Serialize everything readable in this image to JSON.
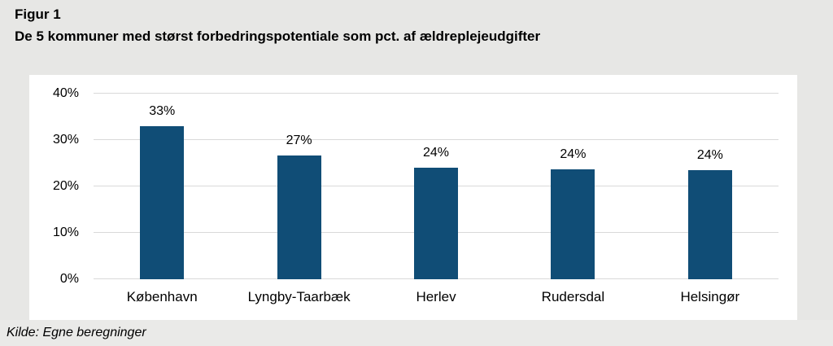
{
  "figure": {
    "label": "Figur 1",
    "title": "De 5 kommuner med størst forbedringspotentiale som pct. af ældreplejeudgifter",
    "source": "Kilde: Egne beregninger"
  },
  "chart_data": {
    "type": "bar",
    "title": "De 5 kommuner med størst forbedringspotentiale som pct. af ældreplejeudgifter",
    "categories": [
      "København",
      "Lyngby-Taarbæk",
      "Herlev",
      "Rudersdal",
      "Helsingør"
    ],
    "values": [
      33,
      27,
      24,
      24,
      24
    ],
    "value_labels": [
      "33%",
      "27%",
      "24%",
      "24%",
      "24%"
    ],
    "render_values": [
      33.0,
      26.6,
      24.1,
      23.7,
      23.5
    ],
    "xlabel": "",
    "ylabel": "",
    "ylim": [
      0,
      40
    ],
    "yticks": [
      "0%",
      "10%",
      "20%",
      "30%",
      "40%"
    ],
    "grid": true,
    "legend": false,
    "bar_color": "#104D76"
  },
  "colors": {
    "page_background": "#E7E7E5",
    "panel_background": "#FFFFFF",
    "footer_background": "#EAEAE8",
    "gridline": "#D9D9D9",
    "bar": "#104D76",
    "text": "#000000"
  }
}
